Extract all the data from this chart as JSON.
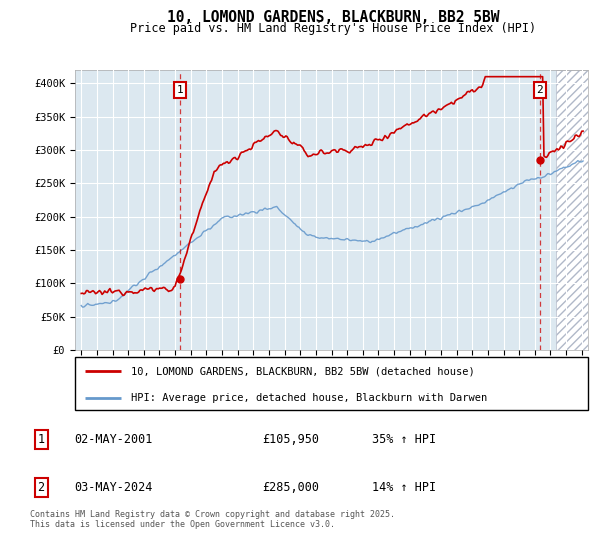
{
  "title": "10, LOMOND GARDENS, BLACKBURN, BB2 5BW",
  "subtitle": "Price paid vs. HM Land Registry's House Price Index (HPI)",
  "ylim": [
    0,
    420000
  ],
  "xlim_start": 1994.6,
  "xlim_end": 2027.4,
  "hpi_color": "#6699cc",
  "price_color": "#cc0000",
  "bg_color": "#dce8f0",
  "transaction1_x": 2001.33,
  "transaction1_y": 105950,
  "transaction1_label": "1",
  "transaction1_date": "02-MAY-2001",
  "transaction1_price": "£105,950",
  "transaction1_hpi": "35% ↑ HPI",
  "transaction2_x": 2024.33,
  "transaction2_y": 285000,
  "transaction2_label": "2",
  "transaction2_date": "03-MAY-2024",
  "transaction2_price": "£285,000",
  "transaction2_hpi": "14% ↑ HPI",
  "legend_line1": "10, LOMOND GARDENS, BLACKBURN, BB2 5BW (detached house)",
  "legend_line2": "HPI: Average price, detached house, Blackburn with Darwen",
  "footer": "Contains HM Land Registry data © Crown copyright and database right 2025.\nThis data is licensed under the Open Government Licence v3.0.",
  "yticks": [
    0,
    50000,
    100000,
    150000,
    200000,
    250000,
    300000,
    350000,
    400000
  ],
  "ytick_labels": [
    "£0",
    "£50K",
    "£100K",
    "£150K",
    "£200K",
    "£250K",
    "£300K",
    "£350K",
    "£400K"
  ],
  "hatch_start": 2025.33,
  "grid_color": "#ffffff",
  "spine_color": "#aaaaaa"
}
